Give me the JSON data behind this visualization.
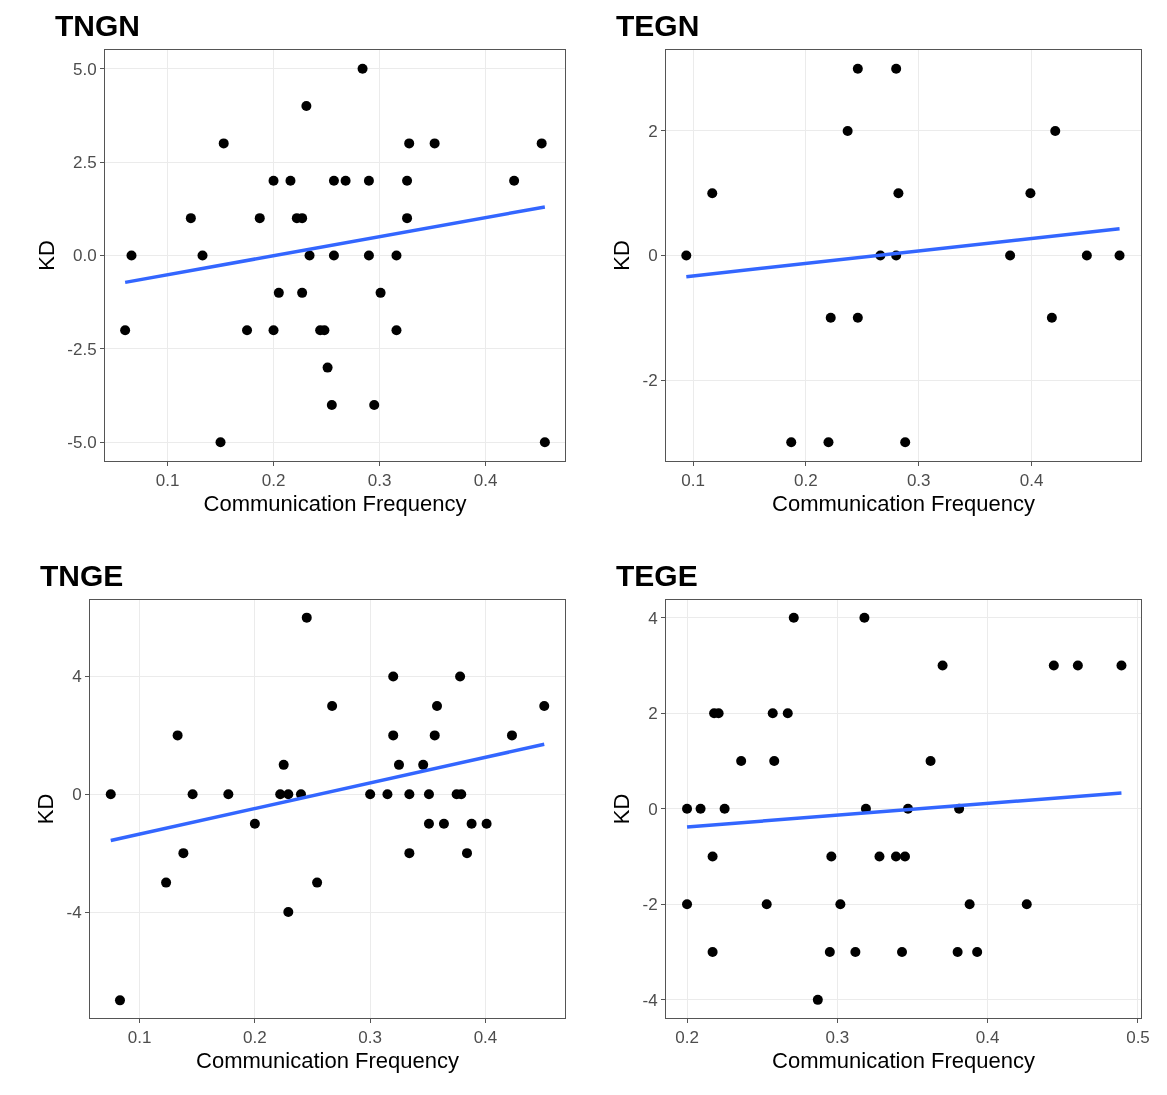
{
  "chart_data": [
    {
      "type": "scatter",
      "title": "TNGN",
      "xlabel": "Communication Frequency",
      "ylabel": "KD",
      "xlim": [
        0.041,
        0.475
      ],
      "xticks": [
        0.1,
        0.2,
        0.3,
        0.4
      ],
      "ylim": [
        -5.5,
        5.5
      ],
      "yticks": [
        {
          "value": -5,
          "label": "-5.0"
        },
        {
          "value": -2.5,
          "label": "-2.5"
        },
        {
          "value": 0,
          "label": "0.0"
        },
        {
          "value": 2.5,
          "label": "2.5"
        },
        {
          "value": 5,
          "label": "5.0"
        }
      ],
      "grid": true,
      "series": [
        {
          "marker": "circle",
          "color": "#000000",
          "x": [
            0.284,
            0.231,
            0.153,
            0.328,
            0.352,
            0.453,
            0.2,
            0.216,
            0.257,
            0.268,
            0.29,
            0.326,
            0.427,
            0.122,
            0.187,
            0.222,
            0.227,
            0.326,
            0.066,
            0.133,
            0.234,
            0.257,
            0.29,
            0.316,
            0.205,
            0.227,
            0.301,
            0.06,
            0.175,
            0.2,
            0.244,
            0.248,
            0.316,
            0.251,
            0.255,
            0.295,
            0.15,
            0.456
          ],
          "values": [
            5,
            4,
            3,
            3,
            3,
            3,
            2,
            2,
            2,
            2,
            2,
            2,
            2,
            1,
            1,
            1,
            1,
            1,
            0,
            0,
            0,
            0,
            0,
            0,
            -1,
            -1,
            -1,
            -2,
            -2,
            -2,
            -2,
            -2,
            -2,
            -3,
            -4,
            -4,
            -5,
            -5
          ]
        },
        {
          "type": "line",
          "color": "#3366ff",
          "x": [
            0.06,
            0.456
          ],
          "values": [
            -0.72,
            1.3
          ]
        }
      ]
    },
    {
      "type": "scatter",
      "title": "TEGN",
      "xlabel": "Communication Frequency",
      "ylabel": "KD",
      "xlim": [
        0.076,
        0.497
      ],
      "xticks": [
        0.1,
        0.2,
        0.3,
        0.4
      ],
      "ylim": [
        -3.3,
        3.3
      ],
      "yticks": [
        -2,
        0,
        2
      ],
      "grid": true,
      "series": [
        {
          "marker": "circle",
          "color": "#000000",
          "x": [
            0.246,
            0.28,
            0.237,
            0.421,
            0.117,
            0.282,
            0.399,
            0.094,
            0.266,
            0.28,
            0.381,
            0.449,
            0.478,
            0.222,
            0.246,
            0.418,
            0.187,
            0.22,
            0.288
          ],
          "values": [
            3,
            3,
            2,
            2,
            1,
            1,
            1,
            0,
            0,
            0,
            0,
            0,
            0,
            -1,
            -1,
            -1,
            -3,
            -3,
            -3
          ]
        },
        {
          "type": "line",
          "color": "#3366ff",
          "x": [
            0.094,
            0.478
          ],
          "values": [
            -0.34,
            0.43
          ]
        }
      ]
    },
    {
      "type": "scatter",
      "title": "TNGE",
      "xlabel": "Communication Frequency",
      "ylabel": "KD",
      "xlim": [
        0.057,
        0.469
      ],
      "xticks": [
        0.1,
        0.2,
        0.3,
        0.4
      ],
      "ylim": [
        -7.6,
        6.6
      ],
      "yticks": [
        -4,
        0,
        4
      ],
      "grid": true,
      "series": [
        {
          "marker": "circle",
          "color": "#000000",
          "x": [
            0.245,
            0.32,
            0.378,
            0.267,
            0.358,
            0.451,
            0.133,
            0.32,
            0.356,
            0.423,
            0.225,
            0.325,
            0.346,
            0.075,
            0.146,
            0.177,
            0.222,
            0.229,
            0.24,
            0.3,
            0.315,
            0.334,
            0.351,
            0.375,
            0.379,
            0.2,
            0.351,
            0.364,
            0.388,
            0.401,
            0.138,
            0.334,
            0.384,
            0.123,
            0.254,
            0.229,
            0.083
          ],
          "values": [
            6,
            4,
            4,
            3,
            3,
            3,
            2,
            2,
            2,
            2,
            1,
            1,
            1,
            0,
            0,
            0,
            0,
            0,
            0,
            0,
            0,
            0,
            0,
            0,
            0,
            -1,
            -1,
            -1,
            -1,
            -1,
            -2,
            -2,
            -2,
            -3,
            -3,
            -4,
            -7
          ]
        },
        {
          "type": "line",
          "color": "#3366ff",
          "x": [
            0.075,
            0.451
          ],
          "values": [
            -1.57,
            1.7
          ]
        }
      ]
    },
    {
      "type": "scatter",
      "title": "TEGE",
      "xlabel": "Communication Frequency",
      "ylabel": "KD",
      "xlim": [
        0.186,
        0.502
      ],
      "xticks": [
        0.2,
        0.3,
        0.4,
        0.5
      ],
      "ylim": [
        -4.38,
        4.37
      ],
      "yticks": [
        -4,
        -2,
        0,
        2,
        4
      ],
      "grid": true,
      "series": [
        {
          "marker": "circle",
          "color": "#000000",
          "x": [
            0.271,
            0.318,
            0.37,
            0.444,
            0.46,
            0.489,
            0.218,
            0.221,
            0.257,
            0.267,
            0.236,
            0.258,
            0.362,
            0.2,
            0.209,
            0.225,
            0.319,
            0.347,
            0.381,
            0.217,
            0.296,
            0.328,
            0.339,
            0.345,
            0.2,
            0.253,
            0.302,
            0.388,
            0.426,
            0.217,
            0.295,
            0.312,
            0.343,
            0.38,
            0.393,
            0.287
          ],
          "values": [
            4,
            4,
            3,
            3,
            3,
            3,
            2,
            2,
            2,
            2,
            1,
            1,
            1,
            0,
            0,
            0,
            0,
            0,
            0,
            -1,
            -1,
            -1,
            -1,
            -1,
            -2,
            -2,
            -2,
            -2,
            -2,
            -3,
            -3,
            -3,
            -3,
            -3,
            -3,
            -4
          ]
        },
        {
          "type": "line",
          "color": "#3366ff",
          "x": [
            0.2,
            0.489
          ],
          "values": [
            -0.38,
            0.33
          ]
        }
      ]
    }
  ]
}
